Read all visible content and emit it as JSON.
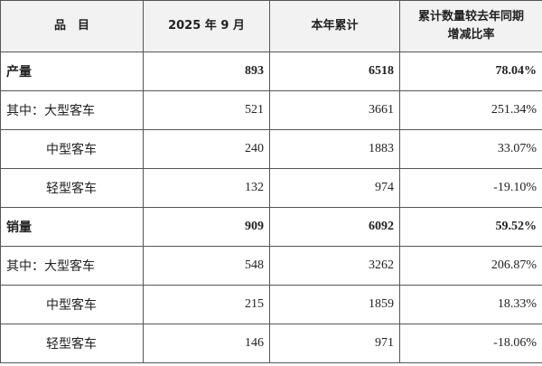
{
  "table": {
    "header": [
      "品　目",
      "2025 年 9 月",
      "本年累计",
      "累计数量较去年同期增减比率"
    ],
    "rows": [
      [
        "产量",
        "893",
        "6518",
        "78.04%"
      ],
      [
        "其中：大型客车",
        "521",
        "3661",
        "251.34%"
      ],
      [
        "中型客车",
        "240",
        "1883",
        "33.07%"
      ],
      [
        "轻型客车",
        "132",
        "974",
        "-19.10%"
      ],
      [
        "销量",
        "909",
        "6092",
        "59.52%"
      ],
      [
        "其中：大型客车",
        "548",
        "3262",
        "206.87%"
      ],
      [
        "中型客车",
        "215",
        "1859",
        "18.33%"
      ],
      [
        "轻型客车",
        "146",
        "971",
        "-18.06%"
      ]
    ]
  }
}
